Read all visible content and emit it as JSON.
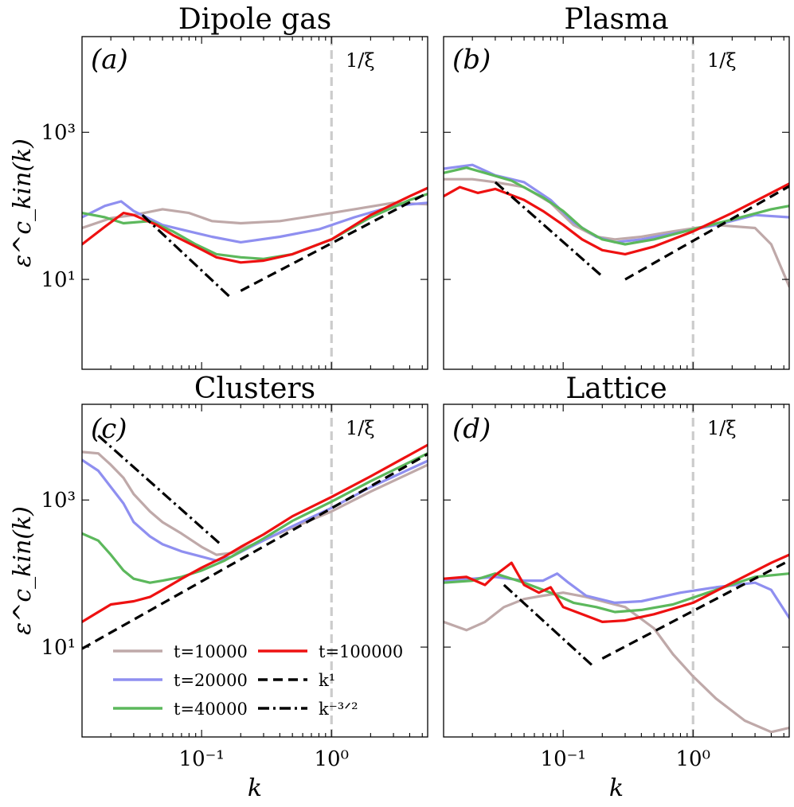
{
  "chart_data": {
    "type": "line",
    "xlabel": "k",
    "ylabel": "ε^c_kin(k)",
    "x_scale": "log",
    "y_scale": "log",
    "xlim": [
      0.012,
      5.5
    ],
    "ylim": [
      0.6,
      20000
    ],
    "x_ticks": [
      {
        "value": 0.1,
        "label": "10⁻¹"
      },
      {
        "value": 1,
        "label": "10⁰"
      }
    ],
    "y_ticks": [
      {
        "value": 10,
        "label": "10¹"
      },
      {
        "value": 1000,
        "label": "10³"
      }
    ],
    "xi_label": "1/ξ",
    "xi_value": 1,
    "legend": [
      {
        "key": "t10000",
        "label": "t=10000",
        "color": "#bfa9a9",
        "style": "solid"
      },
      {
        "key": "t20000",
        "label": "t=20000",
        "color": "#8f8ff0",
        "style": "solid"
      },
      {
        "key": "t40000",
        "label": "t=40000",
        "color": "#5cb85c",
        "style": "solid"
      },
      {
        "key": "t100000",
        "label": "t=100000",
        "color": "#ee1111",
        "style": "solid"
      },
      {
        "key": "k1",
        "label": "k¹",
        "color": "#000000",
        "style": "dashed"
      },
      {
        "key": "k32",
        "label": "k⁻³ᐟ²",
        "color": "#000000",
        "style": "dashdot"
      }
    ],
    "panels": [
      {
        "id": "a",
        "title": "Dipole gas",
        "label": "(a)",
        "series": {
          "t10000": [
            [
              0.012,
              50
            ],
            [
              0.02,
              68
            ],
            [
              0.03,
              75
            ],
            [
              0.05,
              90
            ],
            [
              0.08,
              80
            ],
            [
              0.12,
              62
            ],
            [
              0.2,
              58
            ],
            [
              0.4,
              62
            ],
            [
              0.8,
              75
            ],
            [
              1.5,
              90
            ],
            [
              3,
              110
            ],
            [
              5.5,
              105
            ]
          ],
          "t20000": [
            [
              0.012,
              70
            ],
            [
              0.018,
              100
            ],
            [
              0.024,
              115
            ],
            [
              0.03,
              85
            ],
            [
              0.05,
              55
            ],
            [
              0.08,
              45
            ],
            [
              0.12,
              38
            ],
            [
              0.2,
              32
            ],
            [
              0.4,
              38
            ],
            [
              0.8,
              48
            ],
            [
              1.5,
              70
            ],
            [
              3,
              100
            ],
            [
              5.5,
              110
            ]
          ],
          "t40000": [
            [
              0.012,
              80
            ],
            [
              0.018,
              70
            ],
            [
              0.025,
              58
            ],
            [
              0.04,
              62
            ],
            [
              0.06,
              45
            ],
            [
              0.09,
              30
            ],
            [
              0.13,
              22
            ],
            [
              0.2,
              20
            ],
            [
              0.3,
              19
            ],
            [
              0.5,
              22
            ],
            [
              1,
              35
            ],
            [
              2,
              70
            ],
            [
              4,
              120
            ],
            [
              5.5,
              145
            ]
          ],
          "t100000": [
            [
              0.012,
              30
            ],
            [
              0.018,
              52
            ],
            [
              0.025,
              80
            ],
            [
              0.03,
              75
            ],
            [
              0.045,
              55
            ],
            [
              0.06,
              40
            ],
            [
              0.09,
              28
            ],
            [
              0.13,
              20
            ],
            [
              0.2,
              17
            ],
            [
              0.3,
              18
            ],
            [
              0.5,
              22
            ],
            [
              1,
              35
            ],
            [
              2,
              75
            ],
            [
              4,
              135
            ],
            [
              5.5,
              175
            ]
          ]
        },
        "k1_line": [
          [
            0.2,
            7
          ],
          [
            5.5,
            150
          ]
        ],
        "k32_line": [
          [
            0.035,
            75
          ],
          [
            0.17,
            5.5
          ]
        ]
      },
      {
        "id": "b",
        "title": "Plasma",
        "label": "(b)",
        "series": {
          "t10000": [
            [
              0.012,
              230
            ],
            [
              0.02,
              230
            ],
            [
              0.03,
              210
            ],
            [
              0.05,
              180
            ],
            [
              0.08,
              110
            ],
            [
              0.12,
              55
            ],
            [
              0.18,
              38
            ],
            [
              0.25,
              35
            ],
            [
              0.4,
              38
            ],
            [
              0.7,
              45
            ],
            [
              1.5,
              55
            ],
            [
              3,
              50
            ],
            [
              4,
              30
            ],
            [
              5.5,
              8
            ]
          ],
          "t20000": [
            [
              0.012,
              320
            ],
            [
              0.02,
              360
            ],
            [
              0.03,
              260
            ],
            [
              0.05,
              210
            ],
            [
              0.08,
              120
            ],
            [
              0.12,
              60
            ],
            [
              0.18,
              38
            ],
            [
              0.25,
              32
            ],
            [
              0.4,
              35
            ],
            [
              0.7,
              42
            ],
            [
              1.5,
              55
            ],
            [
              3,
              75
            ],
            [
              5.5,
              70
            ]
          ],
          "t40000": [
            [
              0.012,
              280
            ],
            [
              0.018,
              330
            ],
            [
              0.025,
              280
            ],
            [
              0.04,
              220
            ],
            [
              0.07,
              130
            ],
            [
              0.1,
              85
            ],
            [
              0.14,
              50
            ],
            [
              0.2,
              35
            ],
            [
              0.3,
              30
            ],
            [
              0.5,
              35
            ],
            [
              1,
              48
            ],
            [
              2,
              65
            ],
            [
              4,
              90
            ],
            [
              5.5,
              100
            ]
          ],
          "t100000": [
            [
              0.012,
              135
            ],
            [
              0.016,
              180
            ],
            [
              0.022,
              150
            ],
            [
              0.03,
              170
            ],
            [
              0.05,
              120
            ],
            [
              0.07,
              85
            ],
            [
              0.1,
              55
            ],
            [
              0.14,
              35
            ],
            [
              0.2,
              25
            ],
            [
              0.3,
              22
            ],
            [
              0.5,
              28
            ],
            [
              1,
              45
            ],
            [
              2,
              80
            ],
            [
              4,
              150
            ],
            [
              5.5,
              200
            ]
          ]
        },
        "k1_line": [
          [
            0.3,
            10
          ],
          [
            5.5,
            185
          ]
        ],
        "k32_line": [
          [
            0.03,
            210
          ],
          [
            0.2,
            11
          ]
        ]
      },
      {
        "id": "c",
        "title": "Clusters",
        "label": "(c)",
        "series": {
          "t10000": [
            [
              0.012,
              4500
            ],
            [
              0.016,
              4300
            ],
            [
              0.02,
              3000
            ],
            [
              0.025,
              2000
            ],
            [
              0.03,
              1200
            ],
            [
              0.04,
              700
            ],
            [
              0.05,
              500
            ],
            [
              0.07,
              350
            ],
            [
              0.1,
              230
            ],
            [
              0.13,
              180
            ],
            [
              0.17,
              190
            ],
            [
              0.25,
              250
            ],
            [
              0.5,
              420
            ],
            [
              1,
              700
            ],
            [
              2,
              1300
            ],
            [
              5.5,
              3000
            ]
          ],
          "t20000": [
            [
              0.012,
              3500
            ],
            [
              0.016,
              2500
            ],
            [
              0.02,
              1500
            ],
            [
              0.025,
              900
            ],
            [
              0.03,
              500
            ],
            [
              0.04,
              320
            ],
            [
              0.05,
              250
            ],
            [
              0.07,
              200
            ],
            [
              0.1,
              170
            ],
            [
              0.13,
              150
            ],
            [
              0.17,
              170
            ],
            [
              0.25,
              240
            ],
            [
              0.5,
              440
            ],
            [
              1,
              780
            ],
            [
              2,
              1500
            ],
            [
              5.5,
              3400
            ]
          ],
          "t40000": [
            [
              0.012,
              350
            ],
            [
              0.016,
              280
            ],
            [
              0.02,
              180
            ],
            [
              0.025,
              110
            ],
            [
              0.03,
              85
            ],
            [
              0.04,
              75
            ],
            [
              0.05,
              80
            ],
            [
              0.07,
              90
            ],
            [
              0.1,
              110
            ],
            [
              0.15,
              150
            ],
            [
              0.2,
              200
            ],
            [
              0.3,
              300
            ],
            [
              0.5,
              520
            ],
            [
              1,
              950
            ],
            [
              2,
              1800
            ],
            [
              5.5,
              4300
            ]
          ],
          "t100000": [
            [
              0.012,
              22
            ],
            [
              0.016,
              30
            ],
            [
              0.02,
              38
            ],
            [
              0.03,
              42
            ],
            [
              0.04,
              48
            ],
            [
              0.05,
              60
            ],
            [
              0.07,
              85
            ],
            [
              0.1,
              120
            ],
            [
              0.15,
              170
            ],
            [
              0.2,
              230
            ],
            [
              0.3,
              340
            ],
            [
              0.5,
              600
            ],
            [
              1,
              1100
            ],
            [
              2,
              2100
            ],
            [
              5.5,
              5600
            ]
          ]
        },
        "k1_line": [
          [
            0.012,
            9.5
          ],
          [
            5.5,
            4200
          ]
        ],
        "k32_line": [
          [
            0.016,
            7500
          ],
          [
            0.14,
            250
          ]
        ]
      },
      {
        "id": "d",
        "title": "Lattice",
        "label": "(d)",
        "series": {
          "t10000": [
            [
              0.012,
              22
            ],
            [
              0.018,
              17
            ],
            [
              0.025,
              22
            ],
            [
              0.035,
              35
            ],
            [
              0.05,
              45
            ],
            [
              0.07,
              50
            ],
            [
              0.1,
              55
            ],
            [
              0.15,
              48
            ],
            [
              0.2,
              42
            ],
            [
              0.3,
              35
            ],
            [
              0.5,
              18
            ],
            [
              0.7,
              8
            ],
            [
              1,
              4
            ],
            [
              1.5,
              2
            ],
            [
              2.5,
              1
            ],
            [
              4,
              0.7
            ],
            [
              5.5,
              0.8
            ]
          ],
          "t20000": [
            [
              0.012,
              80
            ],
            [
              0.02,
              85
            ],
            [
              0.03,
              90
            ],
            [
              0.05,
              80
            ],
            [
              0.07,
              80
            ],
            [
              0.09,
              100
            ],
            [
              0.11,
              75
            ],
            [
              0.15,
              50
            ],
            [
              0.25,
              40
            ],
            [
              0.4,
              42
            ],
            [
              0.8,
              55
            ],
            [
              1.5,
              65
            ],
            [
              3,
              75
            ],
            [
              4,
              60
            ],
            [
              5.5,
              25
            ]
          ],
          "t40000": [
            [
              0.012,
              75
            ],
            [
              0.02,
              80
            ],
            [
              0.03,
              100
            ],
            [
              0.05,
              75
            ],
            [
              0.08,
              55
            ],
            [
              0.12,
              40
            ],
            [
              0.18,
              35
            ],
            [
              0.25,
              30
            ],
            [
              0.4,
              32
            ],
            [
              0.7,
              38
            ],
            [
              1.5,
              60
            ],
            [
              3,
              90
            ],
            [
              5.5,
              100
            ]
          ],
          "t100000": [
            [
              0.012,
              85
            ],
            [
              0.018,
              90
            ],
            [
              0.025,
              70
            ],
            [
              0.03,
              95
            ],
            [
              0.04,
              140
            ],
            [
              0.05,
              70
            ],
            [
              0.065,
              55
            ],
            [
              0.08,
              65
            ],
            [
              0.1,
              35
            ],
            [
              0.14,
              28
            ],
            [
              0.2,
              22
            ],
            [
              0.3,
              23
            ],
            [
              0.5,
              28
            ],
            [
              1,
              40
            ],
            [
              2,
              75
            ],
            [
              4,
              140
            ],
            [
              5.5,
              180
            ]
          ]
        },
        "k1_line": [
          [
            0.2,
            7
          ],
          [
            5.5,
            150
          ]
        ],
        "k32_line": [
          [
            0.035,
            70
          ],
          [
            0.17,
            5.5
          ]
        ]
      }
    ]
  }
}
